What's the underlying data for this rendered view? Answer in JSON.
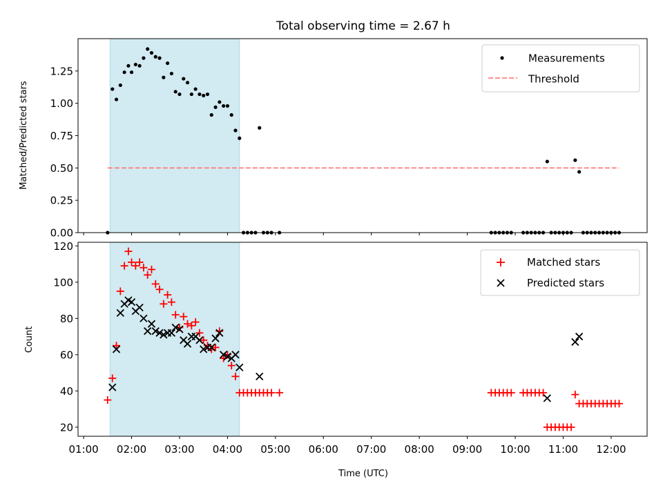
{
  "chart_data": [
    {
      "type": "scatter",
      "title": "Total observing time = 2.67 h",
      "ylabel": "Matched/Predicted stars",
      "xlabel": "",
      "xlim": [
        "00:53",
        "12:45"
      ],
      "ylim": [
        0,
        1.5
      ],
      "yticks": [
        0.0,
        0.25,
        0.5,
        0.75,
        1.0,
        1.25
      ],
      "ytick_labels": [
        "0.00",
        "0.25",
        "0.50",
        "0.75",
        "1.00",
        "1.25"
      ],
      "shaded_span": [
        "01:33",
        "04:15"
      ],
      "shaded_color": "#add8e6",
      "threshold": {
        "y": 0.5,
        "x": [
          "01:30",
          "12:10"
        ],
        "color": "#ff8080"
      },
      "legend": {
        "loc": "upper right",
        "entries": [
          "Measurements",
          "Threshold"
        ]
      },
      "series": [
        {
          "name": "Measurements",
          "marker": "dot",
          "color": "#000000",
          "points": [
            [
              "01:30",
              0.0
            ],
            [
              "01:36",
              1.11
            ],
            [
              "01:41",
              1.03
            ],
            [
              "01:46",
              1.14
            ],
            [
              "01:51",
              1.24
            ],
            [
              "01:56",
              1.29
            ],
            [
              "02:00",
              1.24
            ],
            [
              "02:05",
              1.3
            ],
            [
              "02:10",
              1.29
            ],
            [
              "02:15",
              1.35
            ],
            [
              "02:20",
              1.42
            ],
            [
              "02:25",
              1.39
            ],
            [
              "02:30",
              1.36
            ],
            [
              "02:35",
              1.35
            ],
            [
              "02:40",
              1.2
            ],
            [
              "02:45",
              1.31
            ],
            [
              "02:50",
              1.23
            ],
            [
              "02:55",
              1.09
            ],
            [
              "03:00",
              1.07
            ],
            [
              "03:05",
              1.19
            ],
            [
              "03:10",
              1.16
            ],
            [
              "03:15",
              1.07
            ],
            [
              "03:20",
              1.11
            ],
            [
              "03:25",
              1.07
            ],
            [
              "03:30",
              1.06
            ],
            [
              "03:35",
              1.07
            ],
            [
              "03:40",
              0.91
            ],
            [
              "03:45",
              0.97
            ],
            [
              "03:50",
              1.01
            ],
            [
              "03:55",
              0.98
            ],
            [
              "04:00",
              0.98
            ],
            [
              "04:05",
              0.91
            ],
            [
              "04:10",
              0.79
            ],
            [
              "04:15",
              0.73
            ],
            [
              "04:20",
              0.0
            ],
            [
              "04:25",
              0.0
            ],
            [
              "04:30",
              0.0
            ],
            [
              "04:35",
              0.0
            ],
            [
              "04:40",
              0.81
            ],
            [
              "04:45",
              0.0
            ],
            [
              "04:50",
              0.0
            ],
            [
              "04:55",
              0.0
            ],
            [
              "05:05",
              0.0
            ],
            [
              "09:30",
              0.0
            ],
            [
              "09:35",
              0.0
            ],
            [
              "09:40",
              0.0
            ],
            [
              "09:45",
              0.0
            ],
            [
              "09:50",
              0.0
            ],
            [
              "09:55",
              0.0
            ],
            [
              "10:10",
              0.0
            ],
            [
              "10:15",
              0.0
            ],
            [
              "10:20",
              0.0
            ],
            [
              "10:25",
              0.0
            ],
            [
              "10:30",
              0.0
            ],
            [
              "10:35",
              0.0
            ],
            [
              "10:40",
              0.55
            ],
            [
              "10:45",
              0.0
            ],
            [
              "10:50",
              0.0
            ],
            [
              "10:55",
              0.0
            ],
            [
              "11:00",
              0.0
            ],
            [
              "11:05",
              0.0
            ],
            [
              "11:10",
              0.0
            ],
            [
              "11:15",
              0.56
            ],
            [
              "11:20",
              0.47
            ],
            [
              "11:25",
              0.0
            ],
            [
              "11:30",
              0.0
            ],
            [
              "11:35",
              0.0
            ],
            [
              "11:40",
              0.0
            ],
            [
              "11:45",
              0.0
            ],
            [
              "11:50",
              0.0
            ],
            [
              "11:55",
              0.0
            ],
            [
              "12:00",
              0.0
            ],
            [
              "12:05",
              0.0
            ],
            [
              "12:10",
              0.0
            ]
          ]
        },
        {
          "name": "Threshold",
          "marker": "dashed-line",
          "color": "#ff8080"
        }
      ]
    },
    {
      "type": "scatter",
      "title": "",
      "xlabel": "Time (UTC)",
      "ylabel": "Count",
      "xlim": [
        "00:53",
        "12:45"
      ],
      "ylim": [
        15,
        122
      ],
      "yticks": [
        20,
        40,
        60,
        80,
        100,
        120
      ],
      "ytick_labels": [
        "20",
        "40",
        "60",
        "80",
        "100",
        "120"
      ],
      "xticks": [
        "01:00",
        "02:00",
        "03:00",
        "04:00",
        "05:00",
        "06:00",
        "07:00",
        "08:00",
        "09:00",
        "10:00",
        "11:00",
        "12:00"
      ],
      "shaded_span": [
        "01:33",
        "04:15"
      ],
      "shaded_color": "#add8e6",
      "legend": {
        "loc": "upper right",
        "entries": [
          "Matched stars",
          "Predicted stars"
        ]
      },
      "series": [
        {
          "name": "Matched stars",
          "marker": "plus",
          "color": "#ff0000",
          "points": [
            [
              "01:30",
              35
            ],
            [
              "01:36",
              47
            ],
            [
              "01:41",
              65
            ],
            [
              "01:46",
              95
            ],
            [
              "01:51",
              109
            ],
            [
              "01:56",
              117
            ],
            [
              "02:00",
              111
            ],
            [
              "02:05",
              109
            ],
            [
              "02:10",
              111
            ],
            [
              "02:15",
              108
            ],
            [
              "02:20",
              104
            ],
            [
              "02:25",
              107
            ],
            [
              "02:30",
              99
            ],
            [
              "02:35",
              96
            ],
            [
              "02:40",
              88
            ],
            [
              "02:45",
              93
            ],
            [
              "02:50",
              89
            ],
            [
              "02:55",
              82
            ],
            [
              "03:00",
              75
            ],
            [
              "03:05",
              81
            ],
            [
              "03:10",
              77
            ],
            [
              "03:15",
              76
            ],
            [
              "03:20",
              78
            ],
            [
              "03:25",
              72
            ],
            [
              "03:30",
              68
            ],
            [
              "03:35",
              65
            ],
            [
              "03:40",
              63
            ],
            [
              "03:45",
              64
            ],
            [
              "03:50",
              73
            ],
            [
              "03:55",
              58
            ],
            [
              "04:00",
              60
            ],
            [
              "04:05",
              54
            ],
            [
              "04:10",
              48
            ],
            [
              "04:15",
              39
            ],
            [
              "04:20",
              39
            ],
            [
              "04:25",
              39
            ],
            [
              "04:30",
              39
            ],
            [
              "04:35",
              39
            ],
            [
              "04:40",
              39
            ],
            [
              "04:45",
              39
            ],
            [
              "04:50",
              39
            ],
            [
              "04:55",
              39
            ],
            [
              "05:05",
              39
            ],
            [
              "09:30",
              39
            ],
            [
              "09:35",
              39
            ],
            [
              "09:40",
              39
            ],
            [
              "09:45",
              39
            ],
            [
              "09:50",
              39
            ],
            [
              "09:55",
              39
            ],
            [
              "10:10",
              39
            ],
            [
              "10:15",
              39
            ],
            [
              "10:20",
              39
            ],
            [
              "10:25",
              39
            ],
            [
              "10:30",
              39
            ],
            [
              "10:35",
              39
            ],
            [
              "10:40",
              20
            ],
            [
              "10:45",
              20
            ],
            [
              "10:50",
              20
            ],
            [
              "10:55",
              20
            ],
            [
              "11:00",
              20
            ],
            [
              "11:05",
              20
            ],
            [
              "11:10",
              20
            ],
            [
              "11:15",
              38
            ],
            [
              "11:20",
              33
            ],
            [
              "11:25",
              33
            ],
            [
              "11:30",
              33
            ],
            [
              "11:35",
              33
            ],
            [
              "11:40",
              33
            ],
            [
              "11:45",
              33
            ],
            [
              "11:50",
              33
            ],
            [
              "11:55",
              33
            ],
            [
              "12:00",
              33
            ],
            [
              "12:05",
              33
            ],
            [
              "12:10",
              33
            ]
          ]
        },
        {
          "name": "Predicted stars",
          "marker": "x",
          "color": "#000000",
          "points": [
            [
              "01:36",
              42
            ],
            [
              "01:41",
              63
            ],
            [
              "01:46",
              83
            ],
            [
              "01:51",
              88
            ],
            [
              "01:56",
              90
            ],
            [
              "02:00",
              89
            ],
            [
              "02:05",
              84
            ],
            [
              "02:10",
              86
            ],
            [
              "02:15",
              80
            ],
            [
              "02:20",
              73
            ],
            [
              "02:25",
              77
            ],
            [
              "02:30",
              73
            ],
            [
              "02:35",
              72
            ],
            [
              "02:40",
              71
            ],
            [
              "02:45",
              72
            ],
            [
              "02:50",
              72
            ],
            [
              "02:55",
              75
            ],
            [
              "03:00",
              74
            ],
            [
              "03:05",
              68
            ],
            [
              "03:10",
              66
            ],
            [
              "03:15",
              70
            ],
            [
              "03:20",
              70
            ],
            [
              "03:25",
              68
            ],
            [
              "03:30",
              63
            ],
            [
              "03:35",
              64
            ],
            [
              "03:40",
              64
            ],
            [
              "03:45",
              69
            ],
            [
              "03:50",
              72
            ],
            [
              "03:55",
              60
            ],
            [
              "04:00",
              59
            ],
            [
              "04:05",
              58
            ],
            [
              "04:10",
              60
            ],
            [
              "04:15",
              53
            ],
            [
              "04:40",
              48
            ],
            [
              "10:40",
              36
            ],
            [
              "11:15",
              67
            ],
            [
              "11:20",
              70
            ]
          ]
        }
      ]
    }
  ]
}
